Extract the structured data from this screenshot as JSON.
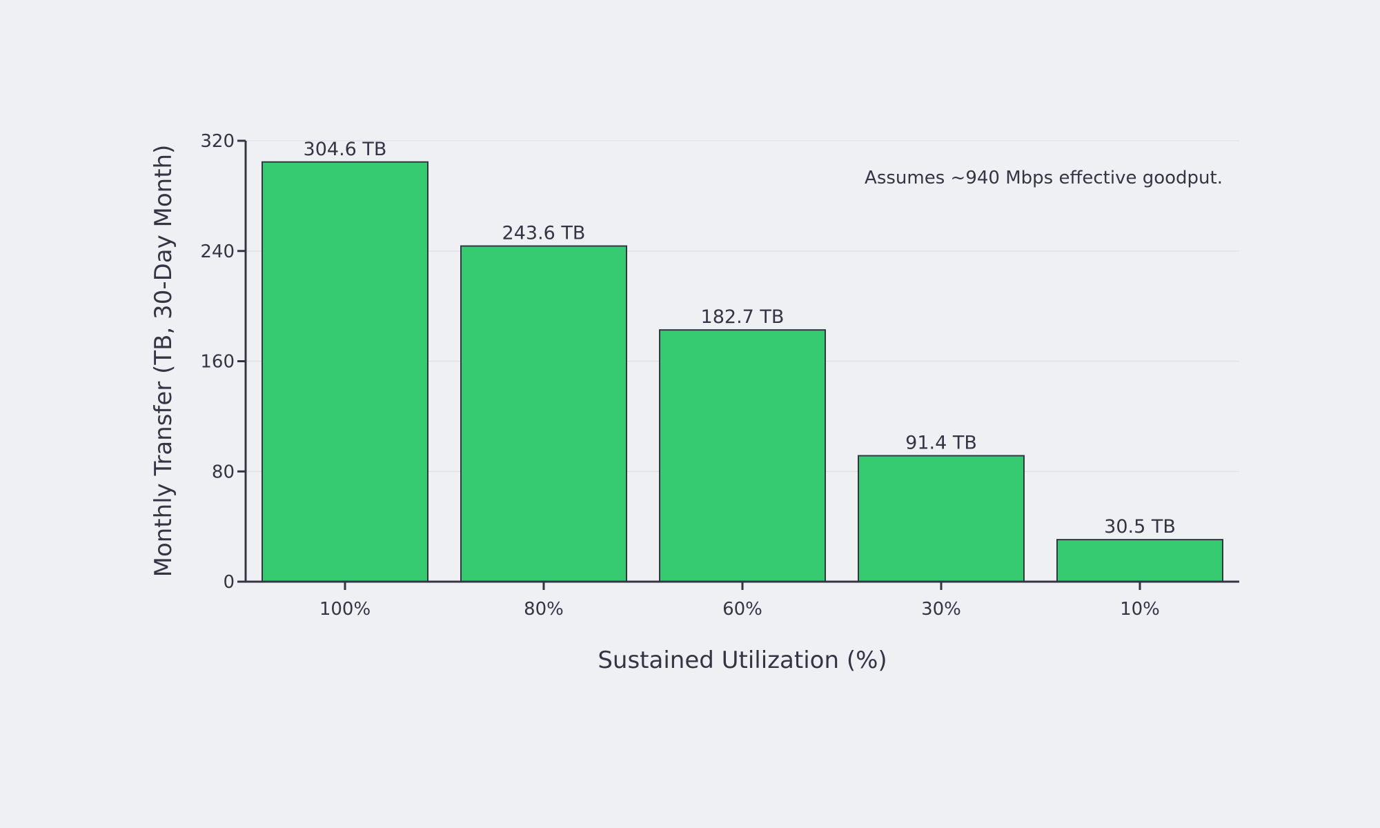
{
  "chart_data": {
    "type": "bar",
    "title": "",
    "xlabel": "Sustained Utilization (%)",
    "ylabel": "Monthly Transfer (TB, 30-Day Month)",
    "categories": [
      "100%",
      "80%",
      "60%",
      "30%",
      "10%"
    ],
    "values": [
      304.6,
      243.6,
      182.7,
      91.4,
      30.5
    ],
    "value_labels": [
      "304.6 TB",
      "243.6 TB",
      "182.7 TB",
      "91.4 TB",
      "30.5 TB"
    ],
    "ylim": [
      0,
      320
    ],
    "yticks": [
      0,
      80,
      160,
      240,
      320
    ],
    "grid": true,
    "legend": null,
    "annotation": "Assumes ~940 Mbps effective goodput.",
    "colors": {
      "bar": "#36cb71",
      "bar_edge": "#353445",
      "background": "#eff0f4",
      "grid": "#e0e3e8",
      "axis": "#353445"
    }
  }
}
